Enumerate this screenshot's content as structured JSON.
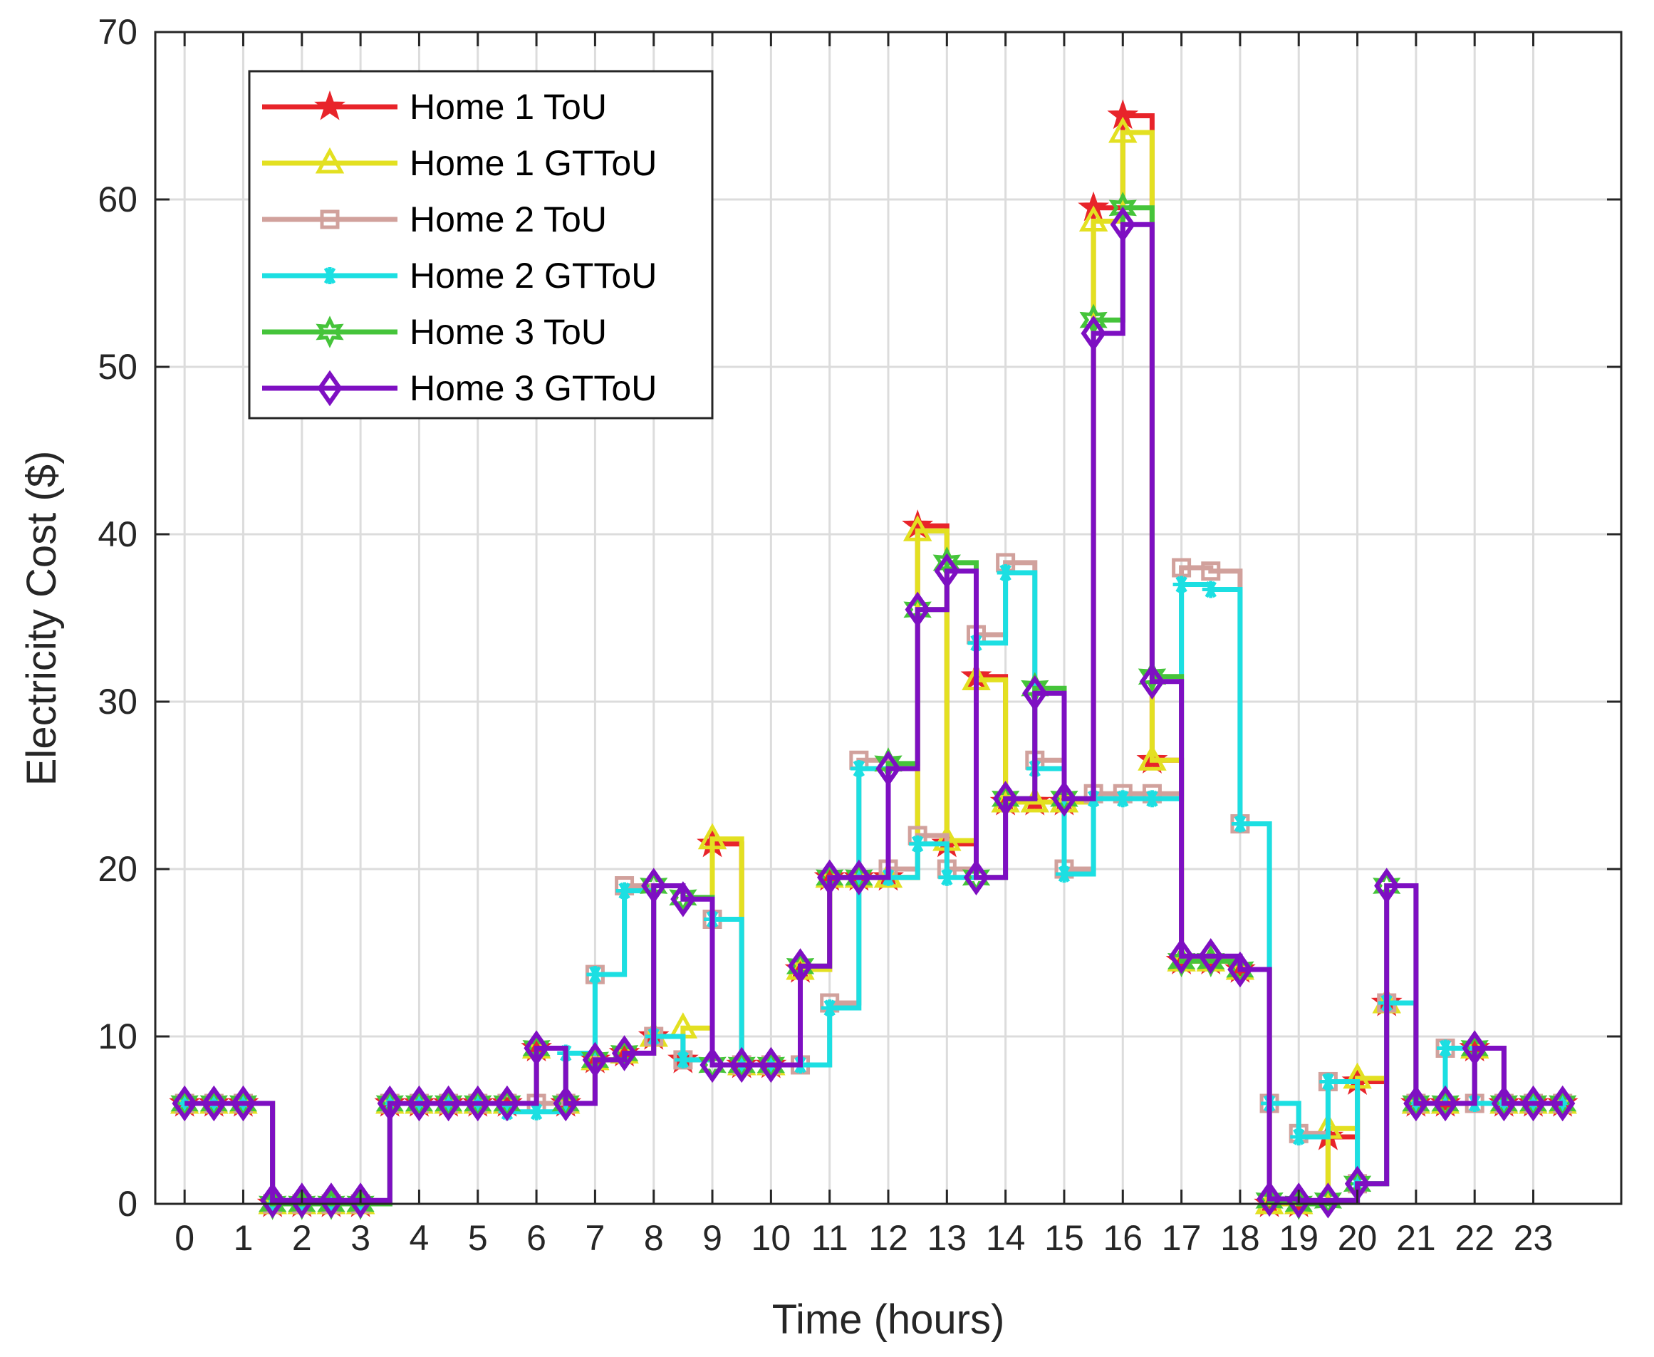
{
  "chart_data": {
    "type": "line",
    "step": true,
    "title": "",
    "xlabel": "Time (hours)",
    "ylabel": "Electricity Cost ($)",
    "xlim": [
      -0.5,
      24.5
    ],
    "ylim": [
      0,
      70
    ],
    "xticks": [
      0,
      1,
      2,
      3,
      4,
      5,
      6,
      7,
      8,
      9,
      10,
      11,
      12,
      13,
      14,
      15,
      16,
      17,
      18,
      19,
      20,
      21,
      22,
      23
    ],
    "xtick_labels": [
      "0",
      "1",
      "2",
      "3",
      "4",
      "5",
      "6",
      "7",
      "8",
      "9",
      "10",
      "11",
      "12",
      "13",
      "14",
      "15",
      "16",
      "17",
      "18",
      "19",
      "20",
      "21",
      "22",
      "23"
    ],
    "yticks": [
      0,
      10,
      20,
      30,
      40,
      50,
      60,
      70
    ],
    "ytick_labels": [
      "0",
      "10",
      "20",
      "30",
      "40",
      "50",
      "60",
      "70"
    ],
    "grid": true,
    "legend_position": "top-left",
    "x": [
      0,
      0.5,
      1,
      1.5,
      2,
      2.5,
      3,
      3.5,
      4,
      4.5,
      5,
      5.5,
      6,
      6.5,
      7,
      7.5,
      8,
      8.5,
      9,
      9.5,
      10,
      10.5,
      11,
      11.5,
      12,
      12.5,
      13,
      13.5,
      14,
      14.5,
      15,
      15.5,
      16,
      16.5,
      17,
      17.5,
      18,
      18.5,
      19,
      19.5,
      20,
      20.5,
      21,
      21.5,
      22,
      22.5,
      23,
      23.5
    ],
    "series": [
      {
        "name": "Home 1 ToU",
        "color": "#e8242a",
        "marker": "star",
        "values": [
          6,
          6,
          6,
          0,
          0,
          0,
          0,
          6,
          6,
          6,
          6,
          6,
          9.3,
          6,
          8.6,
          9,
          10,
          8.6,
          21.5,
          8.3,
          8.3,
          14,
          19.5,
          19.5,
          19.5,
          40.5,
          21.5,
          31.5,
          24,
          24,
          24,
          59.5,
          65,
          26.5,
          14.5,
          14.5,
          14,
          0,
          0,
          4,
          7.3,
          12,
          6,
          6,
          9.3,
          6,
          6,
          6
        ]
      },
      {
        "name": "Home 1 GTToU",
        "color": "#e3e021",
        "marker": "triangle",
        "values": [
          6,
          6,
          6,
          0,
          0,
          0,
          0,
          6,
          6,
          6,
          6,
          6,
          9.3,
          6,
          8.6,
          9,
          10,
          10.5,
          21.8,
          8.3,
          8.3,
          14,
          19.5,
          19.5,
          19.5,
          40.2,
          21.7,
          31.3,
          24,
          24,
          24,
          58.7,
          64,
          26.5,
          14.5,
          14.5,
          14,
          0,
          0,
          4.5,
          7.5,
          12,
          6,
          6,
          9.3,
          6,
          6,
          6
        ]
      },
      {
        "name": "Home 2 ToU",
        "color": "#d1a19c",
        "marker": "square",
        "values": [
          6,
          6,
          6,
          0,
          0,
          0,
          0,
          6,
          6,
          6,
          6,
          6,
          6,
          6,
          13.7,
          19,
          10,
          8.6,
          17,
          8.3,
          8.3,
          8.3,
          12,
          26.5,
          20,
          22,
          20,
          34,
          38.3,
          26.5,
          20,
          24.5,
          24.5,
          24.5,
          38,
          37.8,
          22.7,
          6,
          4.2,
          7.3,
          1.2,
          12,
          6,
          9.3,
          6,
          6,
          6,
          6
        ]
      },
      {
        "name": "Home 2 GTToU",
        "color": "#1cdfe2",
        "marker": "asterisk",
        "values": [
          6,
          6,
          6,
          0,
          0,
          0,
          0,
          6,
          6,
          6,
          6,
          5.5,
          5.5,
          9,
          13.7,
          18.7,
          10,
          8.6,
          17,
          8.3,
          8.3,
          8.3,
          11.7,
          26,
          19.5,
          21.5,
          19.5,
          33.5,
          37.7,
          26,
          19.7,
          24.2,
          24.2,
          24.2,
          37,
          36.7,
          22.7,
          6,
          4,
          7.3,
          1.2,
          12,
          6,
          9.3,
          6,
          6,
          6,
          6
        ]
      },
      {
        "name": "Home 3 ToU",
        "color": "#45c43a",
        "marker": "hexagram",
        "values": [
          6,
          6,
          6,
          0,
          0,
          0,
          0,
          6,
          6,
          6,
          6,
          6,
          9.3,
          6,
          8.6,
          9,
          19,
          18.3,
          8.3,
          8.3,
          8.3,
          14.2,
          19.5,
          19.5,
          26.3,
          35.5,
          38.3,
          19.5,
          24.2,
          30.8,
          24.2,
          52.8,
          59.5,
          31.5,
          14.5,
          14.5,
          14,
          0.2,
          0,
          0.2,
          1.2,
          19,
          6,
          6,
          9.3,
          6,
          6,
          6
        ]
      },
      {
        "name": "Home 3 GTToU",
        "color": "#7e0fc2",
        "marker": "diamond",
        "values": [
          6,
          6,
          6,
          0.2,
          0.2,
          0.2,
          0.2,
          6,
          6,
          6,
          6,
          6,
          9.3,
          6,
          8.6,
          9,
          19,
          18.2,
          8.3,
          8.3,
          8.3,
          14.2,
          19.5,
          19.5,
          26,
          35.5,
          37.8,
          19.5,
          24.2,
          30.5,
          24.2,
          52,
          58.5,
          31.2,
          14.8,
          14.8,
          14,
          0.3,
          0.2,
          0.2,
          1.2,
          19,
          6,
          6,
          9.3,
          6,
          6,
          6
        ]
      }
    ]
  }
}
